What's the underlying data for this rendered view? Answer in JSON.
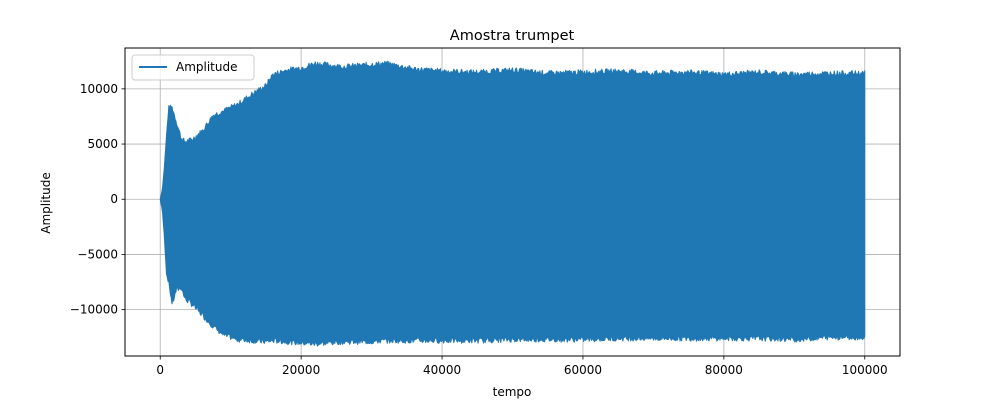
{
  "chart_data": {
    "type": "line",
    "title": "Amostra trumpet",
    "xlabel": "tempo",
    "ylabel": "Amplitude",
    "xlim": [
      -5000,
      105000
    ],
    "ylim": [
      -14200,
      13700
    ],
    "grid": true,
    "legend_position": "top-left",
    "x_ticks": [
      0,
      20000,
      40000,
      60000,
      80000,
      100000
    ],
    "x_tick_labels": [
      "0",
      "20000",
      "40000",
      "60000",
      "80000",
      "100000"
    ],
    "y_ticks": [
      10000,
      5000,
      0,
      -5000,
      -10000
    ],
    "y_tick_labels": [
      "10000",
      "5000",
      "0",
      "−5000",
      "−10000"
    ],
    "series": [
      {
        "name": "Amplitude",
        "color": "#1f77b4",
        "envelope": {
          "x": [
            0,
            300,
            600,
            900,
            1200,
            1700,
            2300,
            3000,
            3500,
            4500,
            6000,
            7500,
            9000,
            11000,
            13000,
            15000,
            16000,
            18000,
            20000,
            22000,
            26000,
            30000,
            32000,
            36000,
            40000,
            45000,
            50000,
            55000,
            60000,
            65000,
            70000,
            75000,
            80000,
            85000,
            90000,
            95000,
            100000
          ],
          "upper": [
            0,
            900,
            3000,
            5800,
            8300,
            8300,
            7000,
            5500,
            5200,
            5400,
            6200,
            7600,
            8000,
            8600,
            9500,
            10300,
            11300,
            11700,
            11900,
            12300,
            12000,
            12200,
            12300,
            11800,
            11600,
            11500,
            11700,
            11400,
            11500,
            11600,
            11400,
            11500,
            11300,
            11500,
            11300,
            11400,
            11400
          ],
          "lower": [
            0,
            -1000,
            -3500,
            -6800,
            -7500,
            -9500,
            -8200,
            -8000,
            -9000,
            -9500,
            -10500,
            -11500,
            -12300,
            -12700,
            -12800,
            -12900,
            -12800,
            -12900,
            -13000,
            -13100,
            -12900,
            -12900,
            -12800,
            -12800,
            -12800,
            -12800,
            -12700,
            -12700,
            -12700,
            -12600,
            -12600,
            -12600,
            -12600,
            -12600,
            -12700,
            -12500,
            -12500
          ]
        }
      }
    ]
  }
}
